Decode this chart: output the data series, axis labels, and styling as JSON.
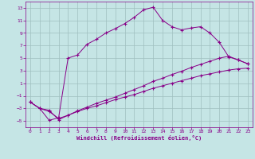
{
  "xlabel": "Windchill (Refroidissement éolien,°C)",
  "bg_color": "#c5e5e5",
  "grid_color": "#9fbfbf",
  "line_color": "#880088",
  "xlim_min": -0.5,
  "xlim_max": 23.5,
  "ylim_min": -6,
  "ylim_max": 14,
  "xticks": [
    0,
    1,
    2,
    3,
    4,
    5,
    6,
    7,
    8,
    9,
    10,
    11,
    12,
    13,
    14,
    15,
    16,
    17,
    18,
    19,
    20,
    21,
    22,
    23
  ],
  "yticks": [
    -5,
    -3,
    -1,
    1,
    3,
    5,
    7,
    9,
    11,
    13
  ],
  "curve1_x": [
    0,
    1,
    2,
    3,
    4,
    5,
    6,
    7,
    8,
    9,
    10,
    11,
    12,
    13,
    14,
    15,
    16,
    17,
    18,
    19,
    20,
    21,
    22,
    23
  ],
  "curve1_y": [
    -2.0,
    -3.0,
    -3.3,
    -4.8,
    -4.1,
    -3.5,
    -3.0,
    -2.6,
    -2.1,
    -1.6,
    -1.2,
    -0.8,
    -0.3,
    0.2,
    0.6,
    1.0,
    1.4,
    1.8,
    2.2,
    2.5,
    2.8,
    3.1,
    3.3,
    3.4
  ],
  "curve2_x": [
    0,
    1,
    2,
    3,
    4,
    5,
    6,
    7,
    8,
    9,
    10,
    11,
    12,
    13,
    14,
    15,
    16,
    17,
    18,
    19,
    20,
    21,
    22,
    23
  ],
  "curve2_y": [
    -2.0,
    -3.0,
    -3.5,
    -4.6,
    -4.1,
    -3.4,
    -2.8,
    -2.2,
    -1.7,
    -1.2,
    -0.6,
    0.0,
    0.6,
    1.3,
    1.8,
    2.4,
    2.9,
    3.5,
    4.0,
    4.5,
    5.0,
    5.3,
    4.7,
    4.1
  ],
  "curve3_x": [
    0,
    1,
    2,
    3,
    4,
    5,
    6,
    7,
    8,
    9,
    10,
    11,
    12,
    13,
    14,
    15,
    16,
    17,
    18,
    19,
    20,
    21,
    22,
    23
  ],
  "curve3_y": [
    -2.0,
    -3.0,
    -4.9,
    -4.5,
    5.0,
    5.5,
    7.2,
    8.0,
    9.0,
    9.7,
    10.5,
    11.5,
    12.7,
    13.1,
    11.0,
    10.0,
    9.5,
    9.8,
    10.0,
    9.0,
    7.5,
    5.2,
    4.7,
    4.1
  ]
}
